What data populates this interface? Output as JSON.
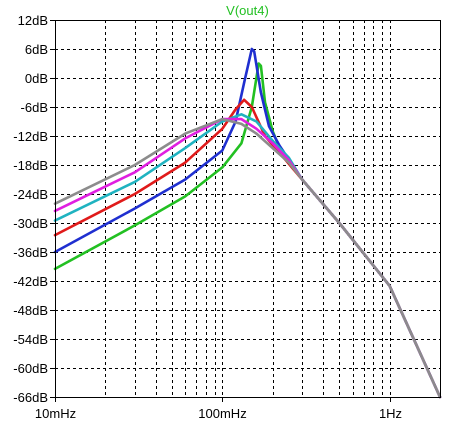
{
  "chart_data": {
    "type": "line",
    "title": "V(out4)",
    "title_color": "#22c022",
    "x_scale": "log",
    "xlim": [
      0.01,
      2.0
    ],
    "ylim": [
      -66,
      12
    ],
    "y_ticks": [
      12,
      6,
      0,
      -6,
      -12,
      -18,
      -24,
      -30,
      -36,
      -42,
      -48,
      -54,
      -60,
      -66
    ],
    "y_tick_labels": [
      "12dB",
      "6dB",
      "0dB",
      "-6dB",
      "-12dB",
      "-18dB",
      "-24dB",
      "-30dB",
      "-36dB",
      "-42dB",
      "-48dB",
      "-54dB",
      "-60dB",
      "-66dB"
    ],
    "x_ticks": [
      0.01,
      0.1,
      1
    ],
    "x_tick_labels": [
      "10mHz",
      "100mHz",
      "1Hz"
    ],
    "grid": true,
    "grid_style": "dashed",
    "series": [
      {
        "color": "#22c022",
        "values": [
          [
            0.01,
            -39.5
          ],
          [
            0.03,
            -30.5
          ],
          [
            0.06,
            -24.5
          ],
          [
            0.1,
            -18.5
          ],
          [
            0.13,
            -13.5
          ],
          [
            0.15,
            -6
          ],
          [
            0.165,
            3
          ],
          [
            0.17,
            2.5
          ],
          [
            0.18,
            -5
          ],
          [
            0.2,
            -11
          ],
          [
            0.22,
            -14.5
          ],
          [
            0.3,
            -21
          ],
          [
            0.5,
            -30
          ],
          [
            1,
            -43
          ],
          [
            2,
            -66
          ]
        ]
      },
      {
        "color": "#1f2fd0",
        "values": [
          [
            0.01,
            -36
          ],
          [
            0.03,
            -27
          ],
          [
            0.06,
            -21
          ],
          [
            0.1,
            -15
          ],
          [
            0.12,
            -9
          ],
          [
            0.135,
            -1
          ],
          [
            0.15,
            6
          ],
          [
            0.155,
            5.5
          ],
          [
            0.17,
            -3
          ],
          [
            0.19,
            -10
          ],
          [
            0.22,
            -14
          ],
          [
            0.3,
            -21
          ],
          [
            0.5,
            -30
          ],
          [
            1,
            -43
          ],
          [
            2,
            -66
          ]
        ]
      },
      {
        "color": "#e01a1a",
        "values": [
          [
            0.01,
            -32.5
          ],
          [
            0.03,
            -24
          ],
          [
            0.06,
            -17.5
          ],
          [
            0.1,
            -10.5
          ],
          [
            0.12,
            -6.5
          ],
          [
            0.135,
            -4.5
          ],
          [
            0.15,
            -6
          ],
          [
            0.18,
            -12
          ],
          [
            0.22,
            -15.5
          ],
          [
            0.3,
            -21
          ],
          [
            0.5,
            -30
          ],
          [
            1,
            -43
          ],
          [
            2,
            -66
          ]
        ]
      },
      {
        "color": "#1fb3c0",
        "values": [
          [
            0.01,
            -29.5
          ],
          [
            0.03,
            -21.5
          ],
          [
            0.06,
            -14.5
          ],
          [
            0.1,
            -9
          ],
          [
            0.13,
            -7.5
          ],
          [
            0.16,
            -9
          ],
          [
            0.2,
            -13
          ],
          [
            0.25,
            -16.5
          ],
          [
            0.3,
            -21
          ],
          [
            0.5,
            -30
          ],
          [
            1,
            -43
          ],
          [
            2,
            -66
          ]
        ]
      },
      {
        "color": "#e01ee0",
        "values": [
          [
            0.01,
            -27.5
          ],
          [
            0.03,
            -19.5
          ],
          [
            0.06,
            -12.5
          ],
          [
            0.1,
            -8.5
          ],
          [
            0.13,
            -8.5
          ],
          [
            0.16,
            -10.5
          ],
          [
            0.2,
            -13.5
          ],
          [
            0.25,
            -17
          ],
          [
            0.3,
            -21
          ],
          [
            0.5,
            -30
          ],
          [
            1,
            -43
          ],
          [
            2,
            -66
          ]
        ]
      },
      {
        "color": "#8c8c8c",
        "values": [
          [
            0.01,
            -26
          ],
          [
            0.03,
            -18
          ],
          [
            0.06,
            -11.5
          ],
          [
            0.1,
            -8.5
          ],
          [
            0.13,
            -9.5
          ],
          [
            0.16,
            -11.5
          ],
          [
            0.2,
            -14.5
          ],
          [
            0.25,
            -17.5
          ],
          [
            0.3,
            -21
          ],
          [
            0.5,
            -30
          ],
          [
            1,
            -43
          ],
          [
            2,
            -66
          ]
        ]
      }
    ]
  }
}
